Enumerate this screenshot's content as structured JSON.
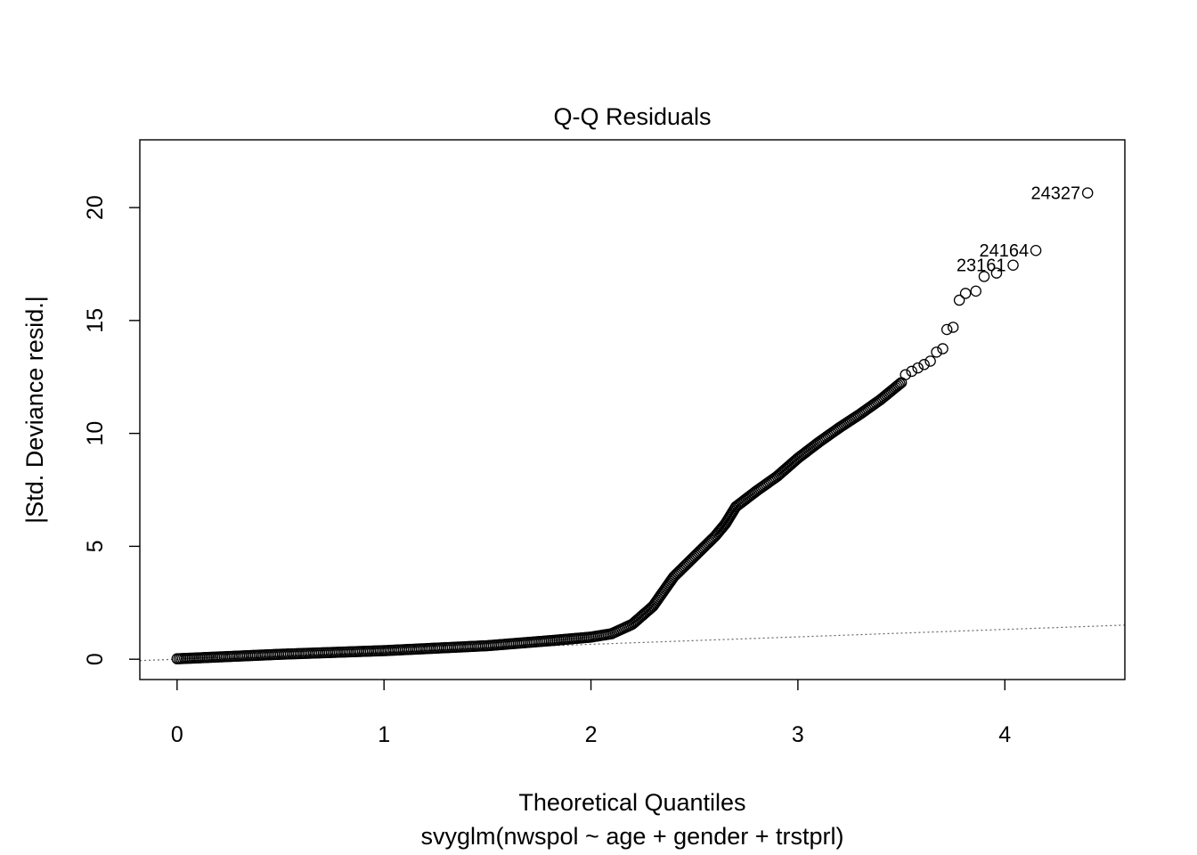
{
  "chart_data": {
    "type": "scatter",
    "title": "Q-Q Residuals",
    "xlabel": "Theoretical Quantiles",
    "xlabel_sub": "svyglm(nwspol ~ age + gender + trstprl)",
    "ylabel": "|Std. Deviance resid.|",
    "xlim": [
      -0.18,
      4.58
    ],
    "ylim": [
      -0.9,
      23.0
    ],
    "x_ticks": [
      0,
      1,
      2,
      3,
      4
    ],
    "y_ticks": [
      0,
      5,
      10,
      15,
      20
    ],
    "x_tick_labels": [
      "0",
      "1",
      "2",
      "3",
      "4"
    ],
    "y_tick_labels": [
      "0",
      "5",
      "10",
      "15",
      "20"
    ],
    "reference_line": {
      "style": "dotted",
      "color": "#666666",
      "intercept": 0,
      "slope": 0.33
    },
    "curve": [
      [
        0.0,
        0.02
      ],
      [
        0.2,
        0.1
      ],
      [
        0.5,
        0.22
      ],
      [
        1.0,
        0.38
      ],
      [
        1.5,
        0.6
      ],
      [
        1.8,
        0.82
      ],
      [
        2.0,
        0.98
      ],
      [
        2.1,
        1.13
      ],
      [
        2.2,
        1.55
      ],
      [
        2.3,
        2.35
      ],
      [
        2.4,
        3.65
      ],
      [
        2.5,
        4.55
      ],
      [
        2.6,
        5.45
      ],
      [
        2.65,
        6.0
      ],
      [
        2.7,
        6.75
      ],
      [
        2.8,
        7.45
      ],
      [
        2.9,
        8.1
      ],
      [
        3.0,
        8.9
      ],
      [
        3.1,
        9.6
      ],
      [
        3.2,
        10.25
      ],
      [
        3.3,
        10.85
      ],
      [
        3.4,
        11.5
      ],
      [
        3.5,
        12.25
      ]
    ],
    "tail_points": [
      [
        3.52,
        12.6
      ],
      [
        3.55,
        12.75
      ],
      [
        3.58,
        12.9
      ],
      [
        3.61,
        13.05
      ],
      [
        3.64,
        13.2
      ],
      [
        3.67,
        13.6
      ],
      [
        3.7,
        13.75
      ],
      [
        3.72,
        14.6
      ],
      [
        3.75,
        14.7
      ],
      [
        3.78,
        15.9
      ],
      [
        3.81,
        16.2
      ],
      [
        3.86,
        16.3
      ],
      [
        3.9,
        16.95
      ],
      [
        3.96,
        17.1
      ],
      [
        4.04,
        17.45
      ],
      [
        4.15,
        18.1
      ],
      [
        4.4,
        20.65
      ]
    ],
    "labeled_points": [
      {
        "label": "24327",
        "x": 4.4,
        "y": 20.65
      },
      {
        "label": "24164",
        "x": 4.15,
        "y": 18.1
      },
      {
        "label": "23161",
        "x": 4.04,
        "y": 17.45
      }
    ],
    "marker": "open-circle",
    "color": "#000000"
  }
}
